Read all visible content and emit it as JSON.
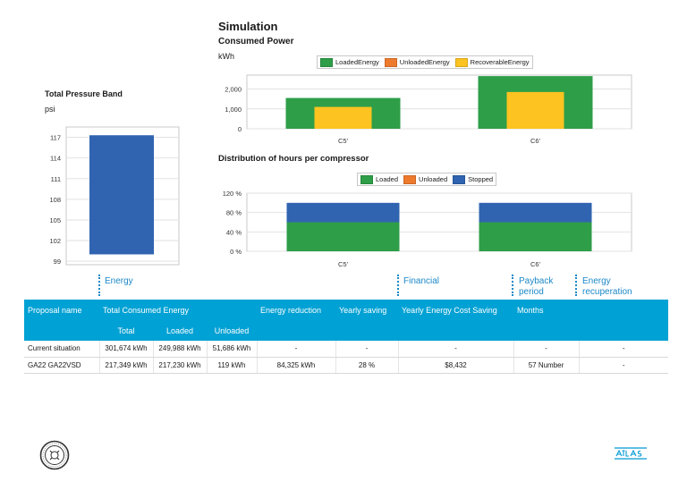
{
  "header": {
    "title": "Simulation",
    "consumed_power": "Consumed Power",
    "consumed_power_unit": "kWh",
    "pressure_title": "Total Pressure Band",
    "pressure_unit": "psi",
    "distribution_title": "Distribution of hours per compressor"
  },
  "chart_data": [
    {
      "type": "bar",
      "title": "Consumed Power",
      "ylabel": "kWh",
      "categories": [
        "C5'",
        "C6'"
      ],
      "series": [
        {
          "name": "LoadedEnergy",
          "color": "#2e9e48",
          "values": [
            1550,
            2650
          ]
        },
        {
          "name": "UnloadedEnergy",
          "color": "#ee7a2e",
          "values": [
            0,
            0
          ]
        },
        {
          "name": "RecoverableEnergy",
          "color": "#fcc321",
          "values": [
            1100,
            1850
          ]
        }
      ],
      "ylim": [
        0,
        2700
      ],
      "yticks": [
        "0",
        "1,000",
        "2,000"
      ],
      "grid": true,
      "legend": "top"
    },
    {
      "type": "bar",
      "title": "Total Pressure Band",
      "ylabel": "psi",
      "categories": [
        ""
      ],
      "series": [
        {
          "name": "",
          "color": "#3064b0",
          "values_range": [
            [
              100,
              117.3
            ]
          ]
        }
      ],
      "ylim": [
        98.5,
        118.5
      ],
      "yticks": [
        "99",
        "102",
        "105",
        "108",
        "111",
        "114",
        "117"
      ],
      "grid": true
    },
    {
      "type": "bar",
      "title": "Distribution of hours per compressor",
      "categories": [
        "C5'",
        "C6'"
      ],
      "series": [
        {
          "name": "Loaded",
          "color": "#2e9e48",
          "values": [
            60,
            60
          ]
        },
        {
          "name": "Unloaded",
          "color": "#ee7a2e",
          "values": [
            0,
            0
          ]
        },
        {
          "name": "Stopped",
          "color": "#3064b0",
          "values": [
            40,
            40
          ]
        }
      ],
      "ylim": [
        0,
        120
      ],
      "yticks": [
        "0 %",
        "40 %",
        "80 %",
        "120 %"
      ],
      "grid": true,
      "legend": "top"
    }
  ],
  "sections": {
    "energy": "Energy",
    "financial": "Financial",
    "payback_line1": "Payback",
    "payback_line2": "period",
    "recup_line1": "Energy",
    "recup_line2": "recuperation"
  },
  "table": {
    "headers": {
      "proposal": "Proposal name",
      "total_consumed": "Total Consumed Energy",
      "energy_reduction": "Energy reduction",
      "yearly_saving": "Yearly saving",
      "yearly_cost_saving": "Yearly Energy Cost Saving",
      "months": "Months",
      "total": "Total",
      "loaded": "Loaded",
      "unloaded": "Unloaded"
    },
    "rows": [
      {
        "name": "Current situation",
        "total": "301,674 kWh",
        "loaded": "249,988 kWh",
        "unloaded": "51,686 kWh",
        "reduction": "-",
        "yearly_saving": "-",
        "cost_saving": "-",
        "months": "-",
        "recup": "-"
      },
      {
        "name": "GA22 GA22VSD",
        "total": "217,349 kWh",
        "loaded": "217,230 kWh",
        "unloaded": "119 kWh",
        "reduction": "84,325 kWh",
        "yearly_saving": "28 %",
        "cost_saving": "$8,432",
        "months": "57 Number",
        "recup": "-"
      }
    ]
  },
  "footer": {
    "left_logo": "circular-seal-logo",
    "right_logo_text": "Atlas Copco",
    "brand_color": "#0099d4"
  }
}
